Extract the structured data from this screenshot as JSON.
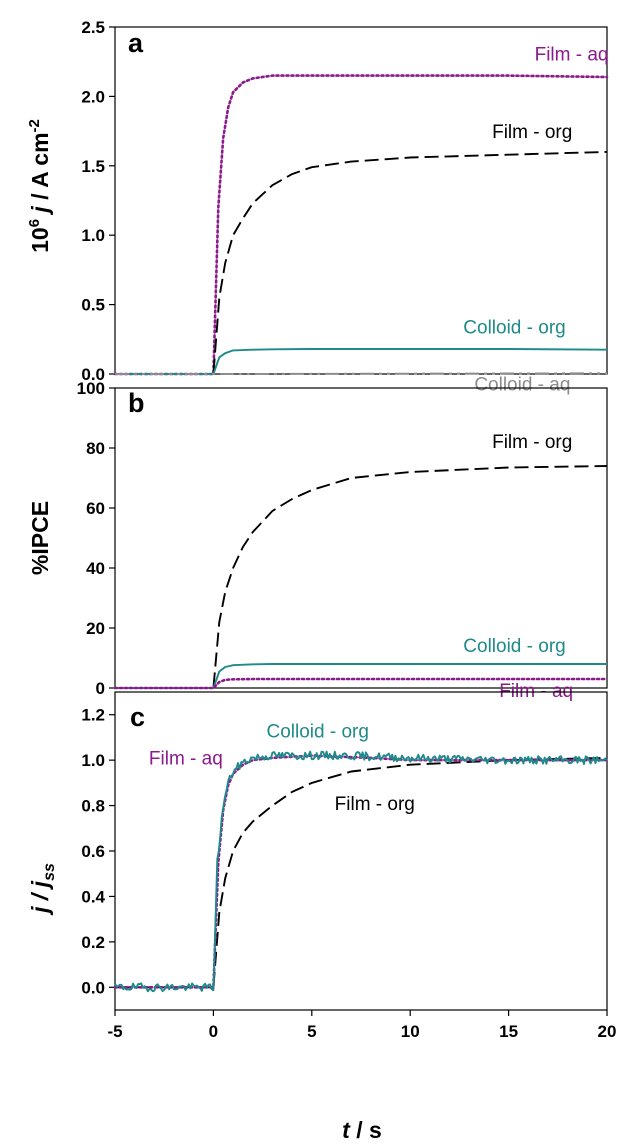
{
  "chart_data": [
    {
      "type": "line",
      "panel": "a",
      "ylabel_parts": [
        "10",
        "6",
        " j",
        " / A cm",
        "-2"
      ],
      "xlim": [
        -5,
        20
      ],
      "ylim": [
        0,
        2.5
      ],
      "yticks": [
        0.0,
        0.5,
        1.0,
        1.5,
        2.0,
        2.5
      ],
      "ytick_labels": [
        "0.0",
        "0.5",
        "1.0",
        "1.5",
        "2.0",
        "2.5"
      ],
      "series": [
        {
          "name": "Film - aq",
          "color": "#8B1A8B",
          "style": "dotted",
          "x": [
            -5,
            0,
            0.25,
            0.5,
            0.75,
            1,
            1.5,
            2,
            3,
            4,
            6,
            10,
            15,
            20
          ],
          "y": [
            0,
            0,
            1.2,
            1.7,
            1.92,
            2.03,
            2.1,
            2.13,
            2.15,
            2.15,
            2.15,
            2.15,
            2.15,
            2.14
          ]
        },
        {
          "name": "Film - org",
          "color": "#000000",
          "style": "dashed",
          "x": [
            -5,
            0,
            0.3,
            0.6,
            1,
            1.5,
            2,
            3,
            4,
            5,
            7,
            10,
            15,
            20
          ],
          "y": [
            0,
            0,
            0.55,
            0.8,
            1.0,
            1.12,
            1.23,
            1.36,
            1.44,
            1.49,
            1.53,
            1.56,
            1.58,
            1.6
          ]
        },
        {
          "name": "Colloid - org",
          "color": "#1F8A8A",
          "style": "solid",
          "x": [
            -5,
            0,
            0.3,
            0.6,
            1,
            2,
            3,
            5,
            10,
            15,
            20
          ],
          "y": [
            0,
            0,
            0.12,
            0.15,
            0.17,
            0.175,
            0.178,
            0.18,
            0.18,
            0.18,
            0.175
          ]
        },
        {
          "name": "Colloid - aq",
          "color": "#8C8C8C",
          "style": "dashdot",
          "x": [
            -5,
            0,
            20
          ],
          "y": [
            0,
            0,
            0.005
          ]
        }
      ]
    },
    {
      "type": "line",
      "panel": "b",
      "ylabel": "%IPCE",
      "xlim": [
        -5,
        20
      ],
      "ylim": [
        0,
        100
      ],
      "yticks": [
        0,
        20,
        40,
        60,
        80,
        100
      ],
      "ytick_labels": [
        "0",
        "20",
        "40",
        "60",
        "80",
        "100"
      ],
      "series": [
        {
          "name": "Film - org",
          "color": "#000000",
          "style": "dashed",
          "x": [
            -5,
            0,
            0.3,
            0.6,
            1,
            1.5,
            2,
            3,
            4,
            5,
            7,
            10,
            15,
            20
          ],
          "y": [
            0,
            0,
            22,
            32,
            40,
            47,
            52,
            59,
            63,
            66,
            70,
            72,
            73.5,
            74
          ]
        },
        {
          "name": "Colloid - org",
          "color": "#1F8A8A",
          "style": "solid",
          "x": [
            -5,
            0,
            0.3,
            0.6,
            1,
            2,
            3,
            5,
            10,
            15,
            20
          ],
          "y": [
            0,
            0,
            5.5,
            7,
            7.6,
            7.9,
            8,
            8,
            8,
            8,
            8
          ]
        },
        {
          "name": "Film - aq",
          "color": "#8B1A8B",
          "style": "dotted",
          "x": [
            -5,
            0,
            0.3,
            0.6,
            1,
            2,
            5,
            10,
            20
          ],
          "y": [
            0,
            0,
            2,
            2.7,
            2.9,
            3,
            3,
            3,
            3
          ]
        }
      ]
    },
    {
      "type": "line",
      "panel": "c",
      "ylabel_parts": [
        "j",
        " / j",
        "ss"
      ],
      "xlabel_parts": [
        "t",
        " / s"
      ],
      "xlim": [
        -5,
        20
      ],
      "ylim": [
        -0.1,
        1.3
      ],
      "yticks": [
        0.0,
        0.2,
        0.4,
        0.6,
        0.8,
        1.0,
        1.2
      ],
      "ytick_labels": [
        "0.0",
        "0.2",
        "0.4",
        "0.6",
        "0.8",
        "1.0",
        "1.2"
      ],
      "xticks": [
        -5,
        0,
        5,
        10,
        15,
        20
      ],
      "xtick_labels": [
        "-5",
        "0",
        "5",
        "10",
        "15",
        "20"
      ],
      "series": [
        {
          "name": "Film - org",
          "color": "#000000",
          "style": "dashed",
          "x": [
            -5,
            0,
            0.3,
            0.6,
            1,
            1.5,
            2,
            3,
            4,
            5,
            7,
            10,
            15,
            20
          ],
          "y": [
            0,
            0,
            0.33,
            0.48,
            0.6,
            0.68,
            0.73,
            0.8,
            0.86,
            0.9,
            0.95,
            0.98,
            1.0,
            1.01
          ]
        },
        {
          "name": "Film - aq",
          "color": "#8B1A8B",
          "style": "dotted",
          "x": [
            -5,
            0,
            0.25,
            0.5,
            0.75,
            1,
            1.5,
            2,
            3,
            5,
            8,
            10,
            15,
            20
          ],
          "y": [
            0,
            0,
            0.55,
            0.78,
            0.89,
            0.94,
            0.98,
            1.0,
            1.01,
            1.02,
            1.01,
            1.0,
            1.0,
            1.0
          ]
        },
        {
          "name": "Colloid - org",
          "color": "#1F8A8A",
          "style": "noisy",
          "x": [
            -5,
            0,
            0.2,
            0.5,
            0.75,
            1,
            1.5,
            2,
            3,
            5,
            7,
            10,
            15,
            20
          ],
          "y": [
            0,
            0,
            0.55,
            0.8,
            0.9,
            0.95,
            0.99,
            1.01,
            1.02,
            1.02,
            1.02,
            1.01,
            1.0,
            1.0
          ]
        }
      ]
    }
  ],
  "annotations": {
    "a": [
      {
        "text": "Film - aq",
        "color": "#8B1A8B",
        "x": 18.2,
        "y": 2.26
      },
      {
        "text": "Film - org",
        "color": "#000000",
        "x": 16.2,
        "y": 1.7
      },
      {
        "text": "Colloid - org",
        "color": "#1F8A8A",
        "x": 15.3,
        "y": 0.29
      },
      {
        "text": "Colloid - aq",
        "color": "#8C8C8C",
        "x": 15.7,
        "y": -0.12
      }
    ],
    "b": [
      {
        "text": "Film - org",
        "color": "#000000",
        "x": 16.2,
        "y": 80
      },
      {
        "text": "Colloid - org",
        "color": "#1F8A8A",
        "x": 15.3,
        "y": 12
      },
      {
        "text": "Film - aq",
        "color": "#8B1A8B",
        "x": 16.4,
        "y": -3
      }
    ],
    "c": [
      {
        "text": "Colloid - org",
        "color": "#1F8A8A",
        "x": 5.3,
        "y": 1.1
      },
      {
        "text": "Film - aq",
        "color": "#8B1A8B",
        "x": -1.4,
        "y": 0.98
      },
      {
        "text": "Film - org",
        "color": "#000000",
        "x": 8.2,
        "y": 0.78
      }
    ]
  }
}
